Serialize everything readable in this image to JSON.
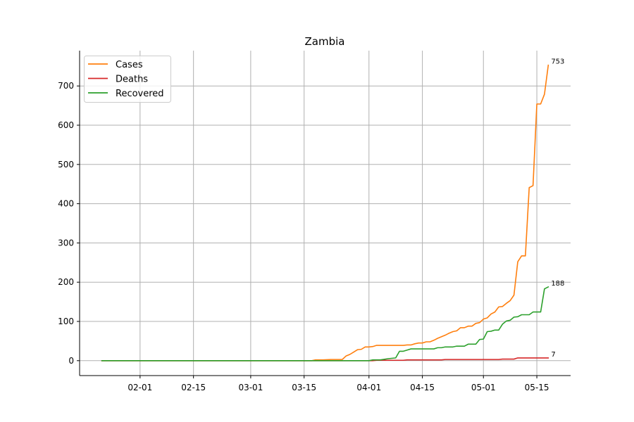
{
  "chart_data": {
    "type": "line",
    "title": "Zambia",
    "xlabel": "",
    "ylabel": "",
    "x_axis_type": "date",
    "x_range": [
      "2020-01-22",
      "2020-05-18"
    ],
    "xticks": [
      "02-01",
      "02-15",
      "03-01",
      "03-15",
      "04-01",
      "04-15",
      "05-01",
      "05-15"
    ],
    "xtick_dates": [
      "2020-02-01",
      "2020-02-15",
      "2020-03-01",
      "2020-03-15",
      "2020-04-01",
      "2020-04-15",
      "2020-05-01",
      "2020-05-15"
    ],
    "yticks": [
      0,
      100,
      200,
      300,
      400,
      500,
      600,
      700
    ],
    "ylim": [
      -38,
      790
    ],
    "grid": true,
    "legend_position": "top-left",
    "series": [
      {
        "name": "Cases",
        "color": "#ff7f0e",
        "end_label": "753",
        "points": [
          [
            "2020-01-22",
            0
          ],
          [
            "2020-03-17",
            0
          ],
          [
            "2020-03-18",
            2
          ],
          [
            "2020-03-20",
            2
          ],
          [
            "2020-03-22",
            3
          ],
          [
            "2020-03-25",
            3
          ],
          [
            "2020-03-26",
            12
          ],
          [
            "2020-03-27",
            16
          ],
          [
            "2020-03-28",
            22
          ],
          [
            "2020-03-29",
            28
          ],
          [
            "2020-03-30",
            29
          ],
          [
            "2020-03-31",
            35
          ],
          [
            "2020-04-01",
            35
          ],
          [
            "2020-04-02",
            36
          ],
          [
            "2020-04-03",
            39
          ],
          [
            "2020-04-10",
            39
          ],
          [
            "2020-04-11",
            40
          ],
          [
            "2020-04-12",
            40
          ],
          [
            "2020-04-13",
            43
          ],
          [
            "2020-04-14",
            45
          ],
          [
            "2020-04-15",
            45
          ],
          [
            "2020-04-16",
            48
          ],
          [
            "2020-04-17",
            48
          ],
          [
            "2020-04-18",
            52
          ],
          [
            "2020-04-19",
            57
          ],
          [
            "2020-04-20",
            61
          ],
          [
            "2020-04-21",
            65
          ],
          [
            "2020-04-22",
            70
          ],
          [
            "2020-04-23",
            74
          ],
          [
            "2020-04-24",
            76
          ],
          [
            "2020-04-25",
            84
          ],
          [
            "2020-04-26",
            84
          ],
          [
            "2020-04-27",
            88
          ],
          [
            "2020-04-28",
            88
          ],
          [
            "2020-04-29",
            95
          ],
          [
            "2020-04-30",
            97
          ],
          [
            "2020-05-01",
            106
          ],
          [
            "2020-05-02",
            109
          ],
          [
            "2020-05-03",
            119
          ],
          [
            "2020-05-04",
            124
          ],
          [
            "2020-05-05",
            137
          ],
          [
            "2020-05-06",
            138
          ],
          [
            "2020-05-07",
            146
          ],
          [
            "2020-05-08",
            153
          ],
          [
            "2020-05-09",
            167
          ],
          [
            "2020-05-10",
            252
          ],
          [
            "2020-05-11",
            267
          ],
          [
            "2020-05-12",
            267
          ],
          [
            "2020-05-13",
            441
          ],
          [
            "2020-05-14",
            446
          ],
          [
            "2020-05-15",
            654
          ],
          [
            "2020-05-16",
            654
          ],
          [
            "2020-05-17",
            679
          ],
          [
            "2020-05-18",
            753
          ]
        ]
      },
      {
        "name": "Deaths",
        "color": "#d62728",
        "end_label": "7",
        "points": [
          [
            "2020-01-22",
            0
          ],
          [
            "2020-04-02",
            0
          ],
          [
            "2020-04-03",
            1
          ],
          [
            "2020-04-10",
            1
          ],
          [
            "2020-04-11",
            2
          ],
          [
            "2020-04-20",
            2
          ],
          [
            "2020-04-21",
            3
          ],
          [
            "2020-05-05",
            3
          ],
          [
            "2020-05-06",
            4
          ],
          [
            "2020-05-09",
            4
          ],
          [
            "2020-05-10",
            7
          ],
          [
            "2020-05-18",
            7
          ]
        ]
      },
      {
        "name": "Recovered",
        "color": "#2ca02c",
        "end_label": "188",
        "points": [
          [
            "2020-01-22",
            0
          ],
          [
            "2020-04-01",
            0
          ],
          [
            "2020-04-02",
            2
          ],
          [
            "2020-04-04",
            2
          ],
          [
            "2020-04-06",
            5
          ],
          [
            "2020-04-08",
            7
          ],
          [
            "2020-04-09",
            24
          ],
          [
            "2020-04-10",
            24
          ],
          [
            "2020-04-11",
            27
          ],
          [
            "2020-04-12",
            30
          ],
          [
            "2020-04-18",
            30
          ],
          [
            "2020-04-19",
            33
          ],
          [
            "2020-04-20",
            33
          ],
          [
            "2020-04-21",
            35
          ],
          [
            "2020-04-23",
            35
          ],
          [
            "2020-04-24",
            37
          ],
          [
            "2020-04-26",
            37
          ],
          [
            "2020-04-27",
            42
          ],
          [
            "2020-04-28",
            42
          ],
          [
            "2020-04-29",
            42
          ],
          [
            "2020-04-30",
            54
          ],
          [
            "2020-05-01",
            55
          ],
          [
            "2020-05-02",
            74
          ],
          [
            "2020-05-03",
            75
          ],
          [
            "2020-05-04",
            78
          ],
          [
            "2020-05-05",
            78
          ],
          [
            "2020-05-06",
            93
          ],
          [
            "2020-05-07",
            101
          ],
          [
            "2020-05-08",
            103
          ],
          [
            "2020-05-09",
            111
          ],
          [
            "2020-05-10",
            112
          ],
          [
            "2020-05-11",
            117
          ],
          [
            "2020-05-12",
            117
          ],
          [
            "2020-05-13",
            117
          ],
          [
            "2020-05-14",
            124
          ],
          [
            "2020-05-15",
            124
          ],
          [
            "2020-05-16",
            124
          ],
          [
            "2020-05-17",
            183
          ],
          [
            "2020-05-18",
            188
          ]
        ]
      }
    ]
  }
}
